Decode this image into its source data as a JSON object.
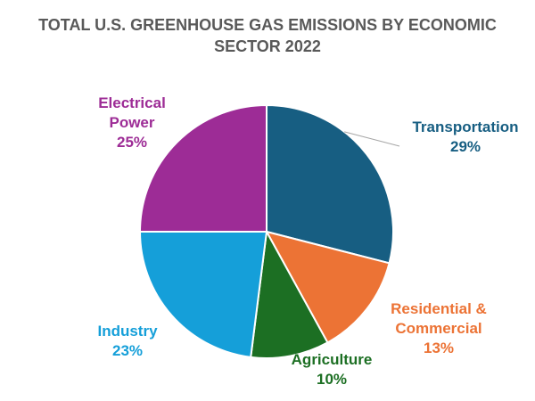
{
  "chart_data": {
    "type": "pie",
    "title_lines": [
      "TOTAL U.S. GREENHOUSE GAS EMISSIONS BY ECONOMIC",
      "SECTOR 2022"
    ],
    "slices": [
      {
        "label_lines": [
          "Transportation"
        ],
        "value": 29,
        "value_text": "29%",
        "color": "#175E82"
      },
      {
        "label_lines": [
          "Residential &",
          "Commercial"
        ],
        "value": 13,
        "value_text": "13%",
        "color": "#EC7335"
      },
      {
        "label_lines": [
          "Agriculture"
        ],
        "value": 10,
        "value_text": "10%",
        "color": "#1C6F23"
      },
      {
        "label_lines": [
          "Industry"
        ],
        "value": 23,
        "value_text": "23%",
        "color": "#159FD9"
      },
      {
        "label_lines": [
          "Electrical",
          "Power"
        ],
        "value": 25,
        "value_text": "25%",
        "color": "#9D2C96"
      }
    ]
  }
}
